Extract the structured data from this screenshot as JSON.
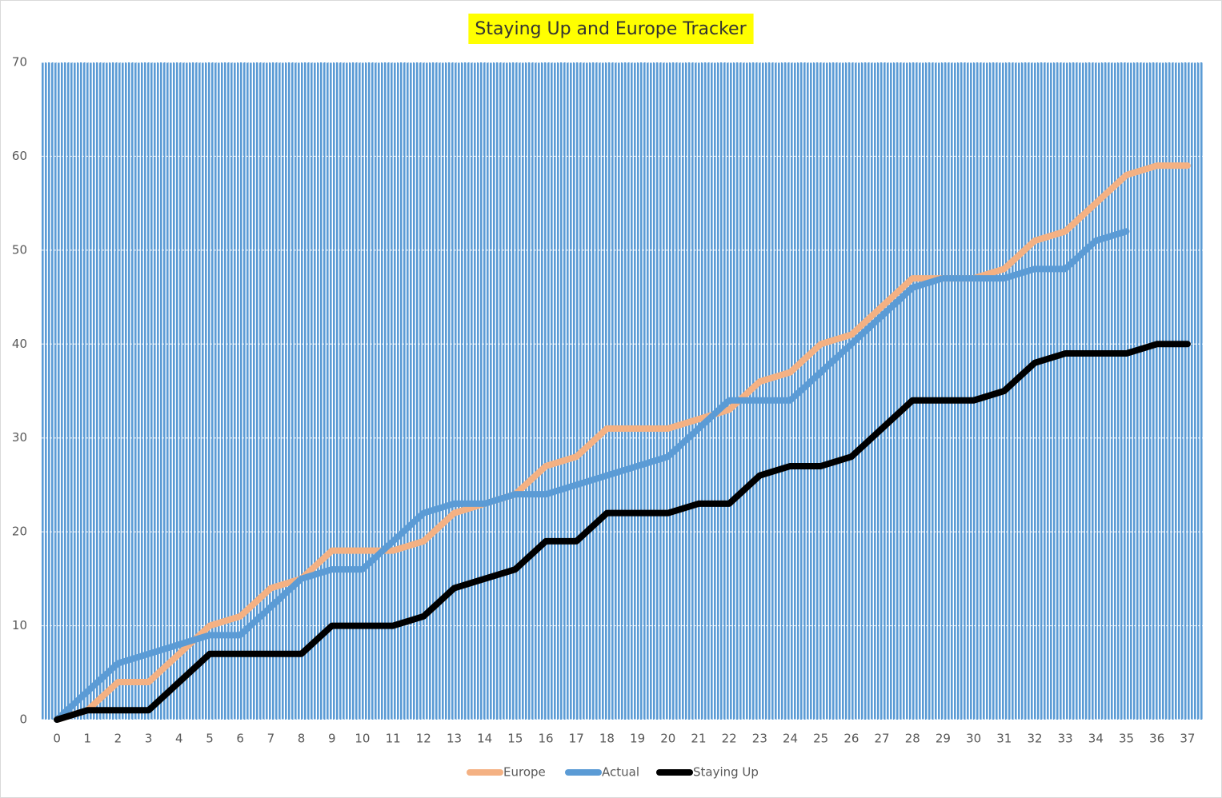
{
  "chart_data": {
    "type": "line",
    "title": "Staying Up and Europe Tracker",
    "categories": [
      "0",
      "1",
      "2",
      "3",
      "4",
      "5",
      "6",
      "7",
      "8",
      "9",
      "10",
      "11",
      "12",
      "13",
      "14",
      "15",
      "16",
      "17",
      "18",
      "19",
      "20",
      "21",
      "22",
      "23",
      "24",
      "25",
      "26",
      "27",
      "28",
      "29",
      "30",
      "31",
      "32",
      "33",
      "34",
      "35",
      "36",
      "37"
    ],
    "series": [
      {
        "name": "Europe",
        "color": "#f4b183",
        "values": [
          0,
          1,
          4,
          4,
          7,
          10,
          11,
          14,
          15,
          18,
          18,
          18,
          19,
          22,
          23,
          24,
          27,
          28,
          31,
          31,
          31,
          32,
          33,
          36,
          37,
          40,
          41,
          44,
          47,
          47,
          47,
          48,
          51,
          52,
          55,
          58,
          59,
          59
        ]
      },
      {
        "name": "Actual",
        "color": "#5b9bd5",
        "values": [
          0,
          3,
          6,
          7,
          8,
          9,
          9,
          12,
          15,
          16,
          16,
          19,
          22,
          23,
          23,
          24,
          24,
          25,
          26,
          27,
          28,
          31,
          34,
          34,
          34,
          37,
          40,
          43,
          46,
          47,
          47,
          47,
          48,
          48,
          51,
          52,
          null,
          null
        ]
      },
      {
        "name": "Staying Up",
        "color": "#000000",
        "values": [
          0,
          1,
          1,
          1,
          4,
          7,
          7,
          7,
          7,
          10,
          10,
          10,
          11,
          14,
          15,
          16,
          19,
          19,
          22,
          22,
          22,
          23,
          23,
          26,
          27,
          27,
          28,
          31,
          34,
          34,
          34,
          35,
          38,
          39,
          39,
          39,
          40,
          40
        ]
      }
    ],
    "ylim": [
      0,
      70
    ],
    "yticks": [
      0,
      10,
      20,
      30,
      40,
      50,
      60,
      70
    ],
    "grid": true,
    "legend": "bottom"
  }
}
